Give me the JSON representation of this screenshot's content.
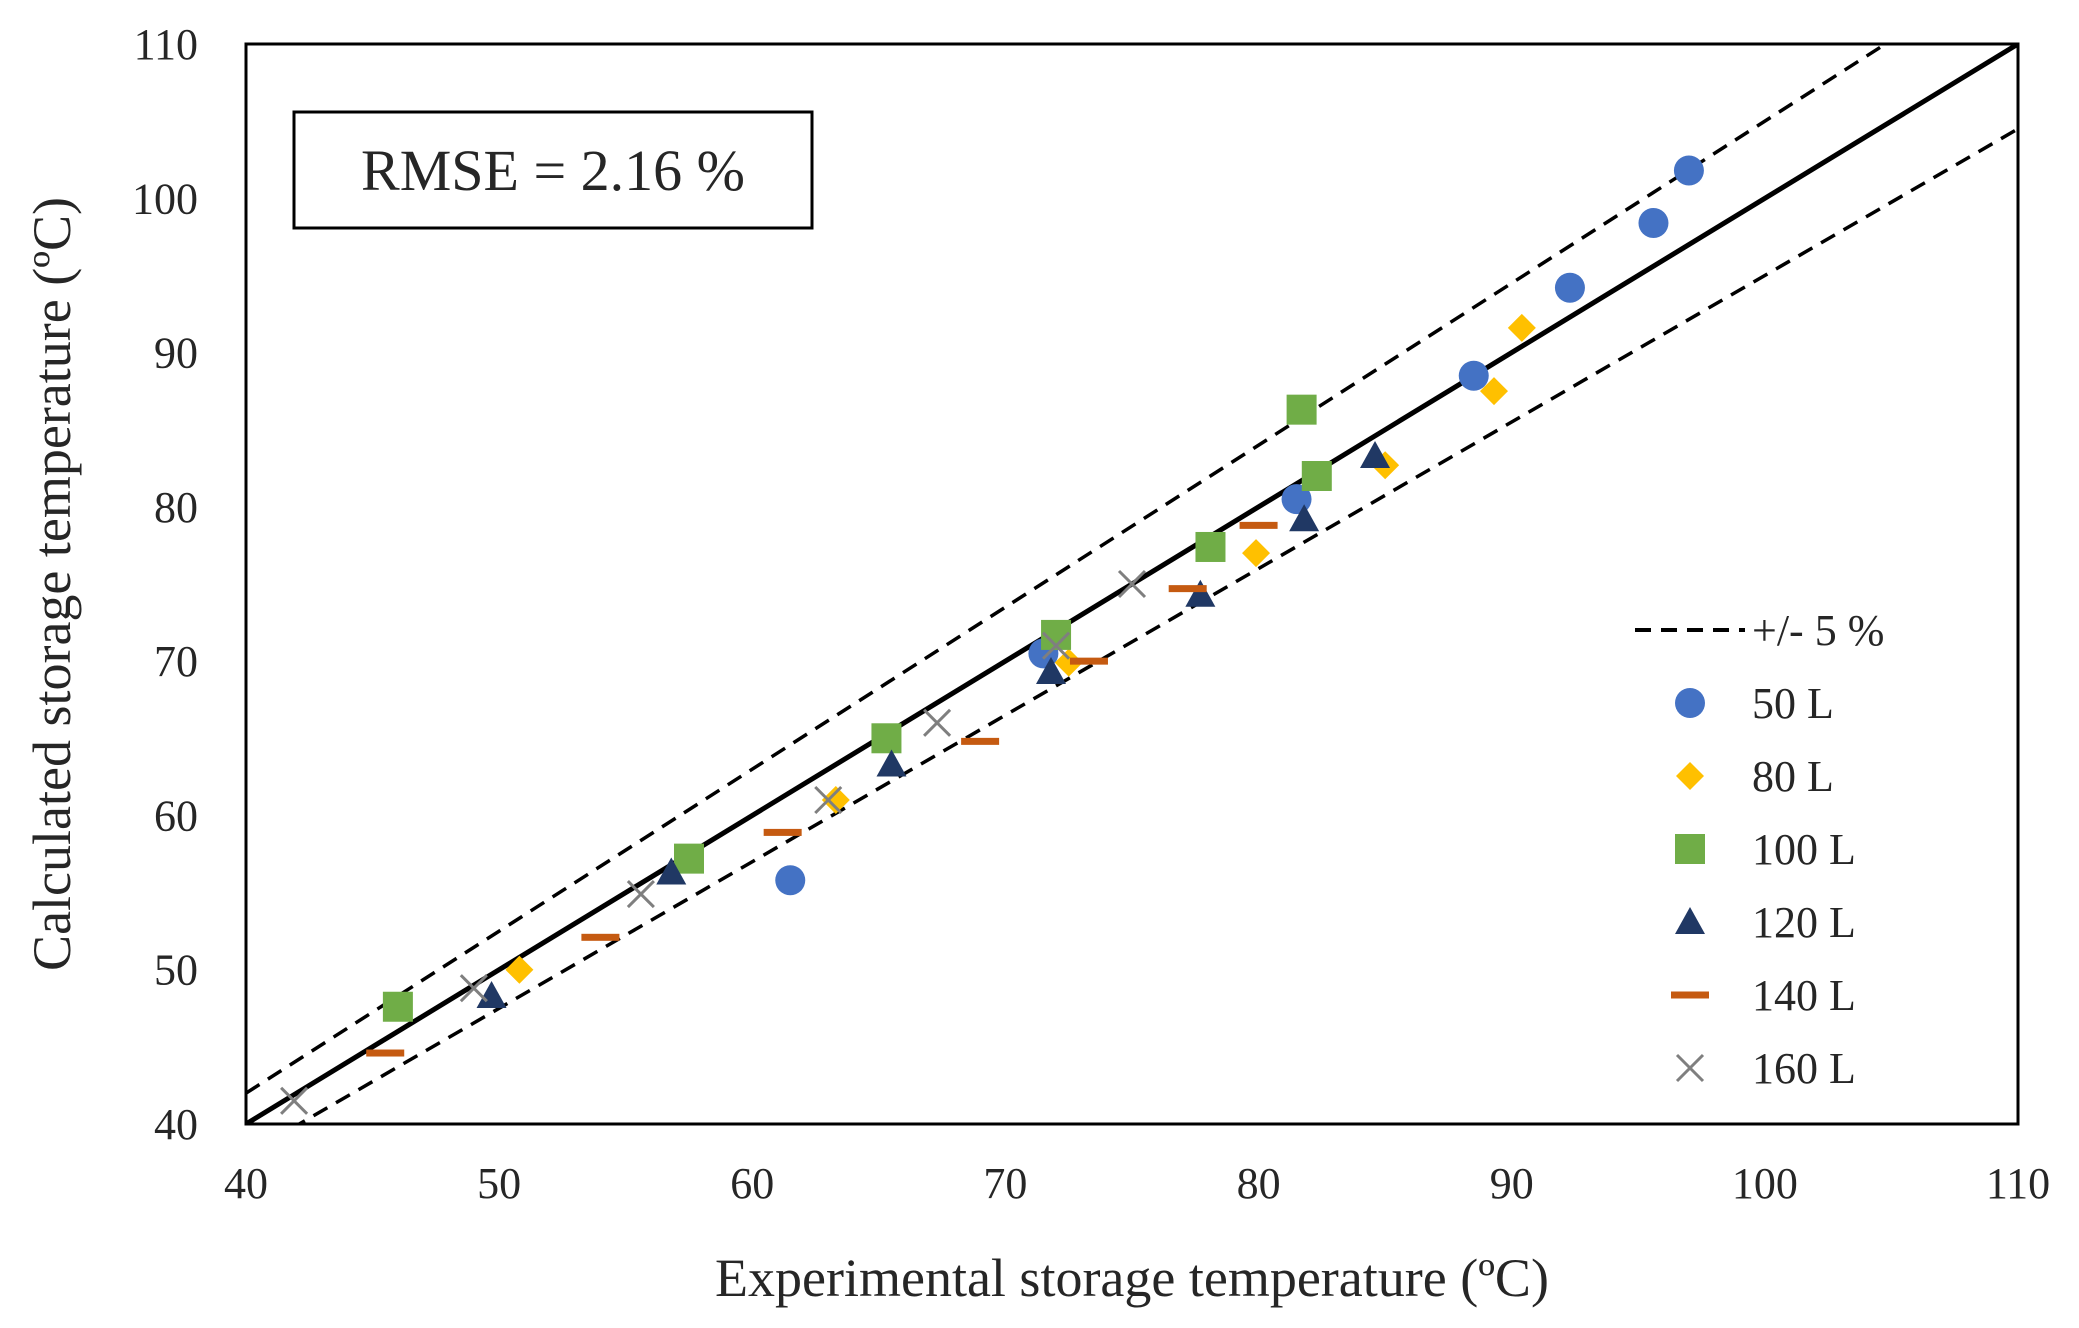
{
  "chart_data": {
    "type": "scatter",
    "title": "",
    "xlabel": "Experimental storage temperature (ºC)",
    "ylabel": "Calculated storage temperature (ºC)",
    "xlim": [
      40,
      110
    ],
    "ylim": [
      40,
      110
    ],
    "xticks": [
      40,
      50,
      60,
      70,
      80,
      90,
      100,
      110
    ],
    "yticks": [
      40,
      50,
      60,
      70,
      80,
      90,
      100,
      110
    ],
    "grid": false,
    "legend_position": "bottom-right",
    "annotation": "RMSE = 2.16 %",
    "reference_lines": [
      {
        "name": "y = x",
        "factor": 1.0,
        "style": "solid"
      },
      {
        "name": "+/- 5 %",
        "factor": 1.05,
        "style": "dashed",
        "in_legend": true
      },
      {
        "name": "+/- 5 % lower",
        "factor": 0.95,
        "style": "dashed",
        "in_legend": false
      }
    ],
    "series": [
      {
        "name": "50 L",
        "marker": "circle",
        "color": "#4472C4",
        "points": [
          [
            61.5,
            55.8
          ],
          [
            71.5,
            70.5
          ],
          [
            81.5,
            80.5
          ],
          [
            88.5,
            88.5
          ],
          [
            92.3,
            94.2
          ],
          [
            95.6,
            98.4
          ],
          [
            97.0,
            101.8
          ]
        ]
      },
      {
        "name": "80 L",
        "marker": "diamond",
        "color": "#FFC000",
        "points": [
          [
            50.8,
            50.0
          ],
          [
            63.3,
            61.0
          ],
          [
            72.5,
            69.9
          ],
          [
            79.9,
            77.0
          ],
          [
            85.0,
            82.7
          ],
          [
            89.3,
            87.5
          ],
          [
            90.4,
            91.6
          ]
        ]
      },
      {
        "name": "100 L",
        "marker": "square",
        "color": "#70AD47",
        "points": [
          [
            46.0,
            47.6
          ],
          [
            57.5,
            57.2
          ],
          [
            65.3,
            65.0
          ],
          [
            72.0,
            71.7
          ],
          [
            78.1,
            77.4
          ],
          [
            81.7,
            86.3
          ],
          [
            82.3,
            82.0
          ]
        ]
      },
      {
        "name": "120 L",
        "marker": "triangle",
        "color": "#203864",
        "points": [
          [
            49.7,
            48.3
          ],
          [
            56.8,
            56.3
          ],
          [
            65.5,
            63.3
          ],
          [
            71.8,
            69.3
          ],
          [
            77.7,
            74.3
          ],
          [
            81.8,
            79.2
          ],
          [
            84.6,
            83.3
          ]
        ]
      },
      {
        "name": "140 L",
        "marker": "dash",
        "color": "#C55A11",
        "points": [
          [
            45.5,
            44.6
          ],
          [
            54.0,
            52.1
          ],
          [
            61.2,
            58.9
          ],
          [
            69.0,
            64.8
          ],
          [
            73.3,
            70.0
          ],
          [
            77.2,
            74.7
          ],
          [
            80.0,
            78.8
          ]
        ]
      },
      {
        "name": "160 L",
        "marker": "x",
        "color": "#7F7F7F",
        "points": [
          [
            41.9,
            41.5
          ],
          [
            49.0,
            48.8
          ],
          [
            55.6,
            54.9
          ],
          [
            63.0,
            61.0
          ],
          [
            67.3,
            66.0
          ],
          [
            72.0,
            71.0
          ],
          [
            75.0,
            75.0
          ]
        ]
      }
    ],
    "legend": [
      {
        "label": "+/- 5 %",
        "marker": "dashed-line",
        "color": "#000000"
      },
      {
        "label": "50 L",
        "marker": "circle",
        "color": "#4472C4"
      },
      {
        "label": "80 L",
        "marker": "diamond",
        "color": "#FFC000"
      },
      {
        "label": "100 L",
        "marker": "square",
        "color": "#70AD47"
      },
      {
        "label": "120 L",
        "marker": "triangle",
        "color": "#203864"
      },
      {
        "label": "140 L",
        "marker": "dash",
        "color": "#C55A11"
      },
      {
        "label": "160 L",
        "marker": "x",
        "color": "#7F7F7F"
      }
    ]
  }
}
